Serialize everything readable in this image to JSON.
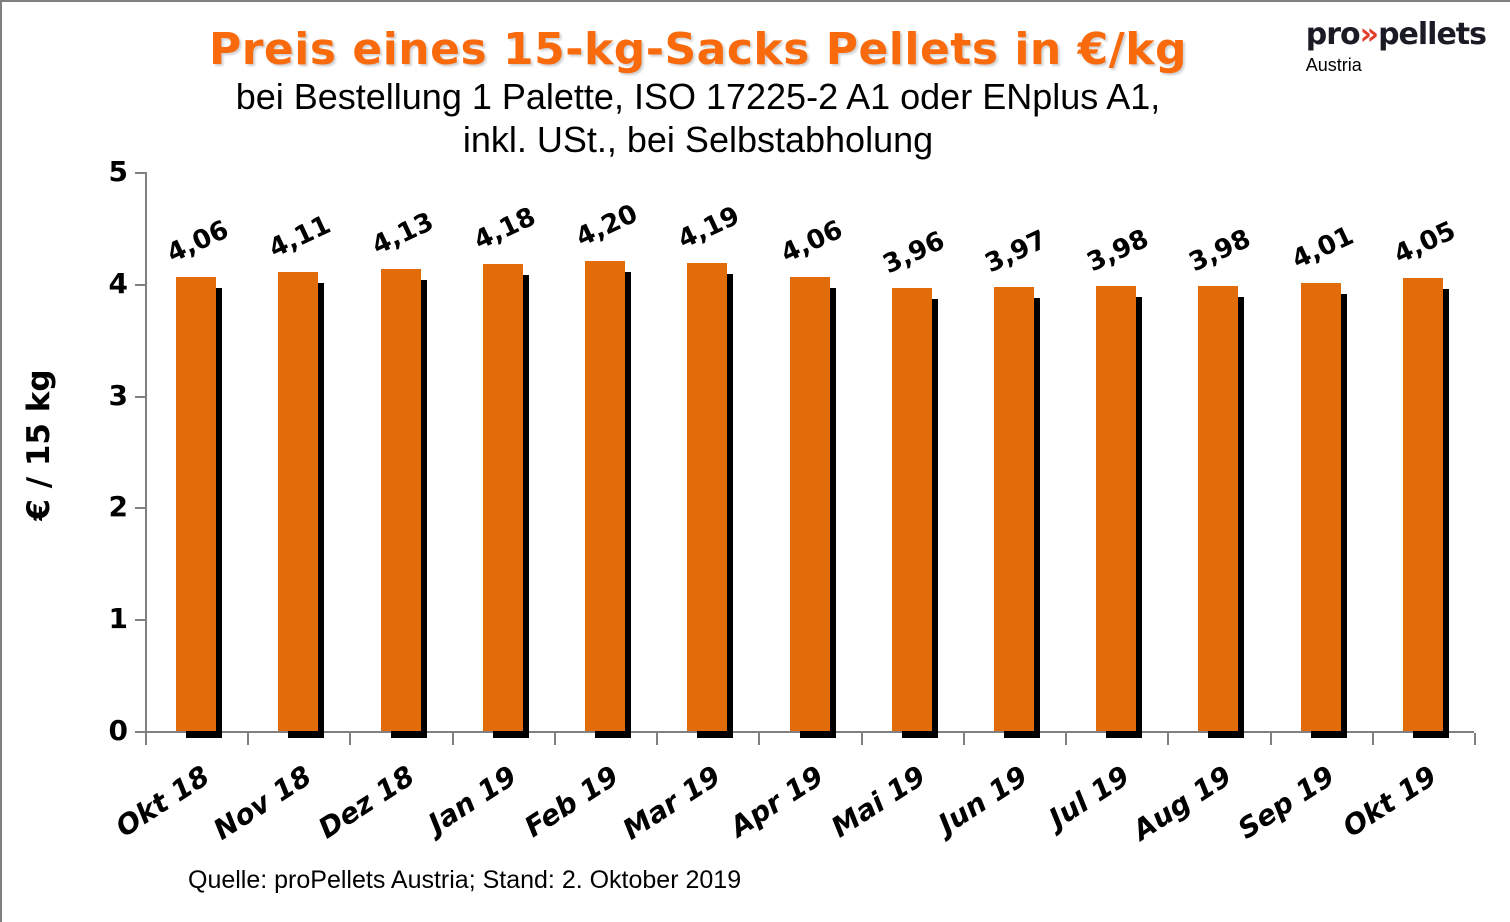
{
  "header": {
    "title": "Preis eines 15-kg-Sacks Pellets in €/kg",
    "subtitle_line1": "bei Bestellung 1 Palette, ISO 17225-2 A1 oder ENplus A1,",
    "subtitle_line2": "inkl. USt., bei Selbstabholung",
    "title_color": "#f96a0d"
  },
  "logo": {
    "pro": "pro",
    "chevrons": "»",
    "pellets": "pellets",
    "subtext": "Austria",
    "dark_color": "#1b1b26",
    "red_color": "#e43b28"
  },
  "footer": {
    "source": "Quelle: proPellets Austria; Stand: 2. Oktober 2019"
  },
  "chart_data": {
    "type": "bar",
    "categories": [
      "Okt 18",
      "Nov 18",
      "Dez 18",
      "Jan 19",
      "Feb 19",
      "Mar 19",
      "Apr 19",
      "Mai 19",
      "Jun 19",
      "Jul 19",
      "Aug 19",
      "Sep 19",
      "Okt 19"
    ],
    "values": [
      4.06,
      4.11,
      4.13,
      4.18,
      4.2,
      4.19,
      4.06,
      3.96,
      3.97,
      3.98,
      3.98,
      4.01,
      4.05
    ],
    "value_labels": [
      "4,06",
      "4,11",
      "4,13",
      "4,18",
      "4,20",
      "4,19",
      "4,06",
      "3,96",
      "3,97",
      "3,98",
      "3,98",
      "4,01",
      "4,05"
    ],
    "title": "Preis eines 15-kg-Sacks Pellets in €/kg",
    "xlabel": "",
    "ylabel": "€ / 15 kg",
    "ylim": [
      0,
      5
    ],
    "yticks": [
      0,
      1,
      2,
      3,
      4,
      5
    ],
    "grid": false,
    "legend": "none",
    "bar_color": "#e36c0a",
    "shadow_color": "#000000",
    "axis_color": "#808080"
  }
}
